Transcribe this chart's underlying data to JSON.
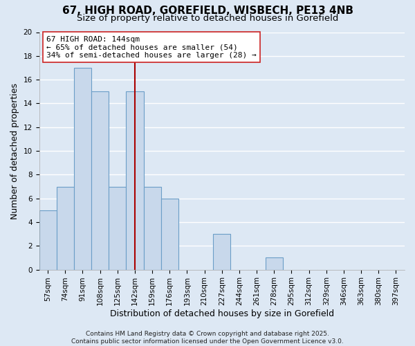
{
  "title": "67, HIGH ROAD, GOREFIELD, WISBECH, PE13 4NB",
  "subtitle": "Size of property relative to detached houses in Gorefield",
  "xlabel": "Distribution of detached houses by size in Gorefield",
  "ylabel": "Number of detached properties",
  "bin_labels": [
    "57sqm",
    "74sqm",
    "91sqm",
    "108sqm",
    "125sqm",
    "142sqm",
    "159sqm",
    "176sqm",
    "193sqm",
    "210sqm",
    "227sqm",
    "244sqm",
    "261sqm",
    "278sqm",
    "295sqm",
    "312sqm",
    "329sqm",
    "346sqm",
    "363sqm",
    "380sqm",
    "397sqm"
  ],
  "bar_values": [
    5,
    7,
    17,
    15,
    7,
    15,
    7,
    6,
    0,
    0,
    3,
    0,
    0,
    1,
    0,
    0,
    0,
    0,
    0,
    0,
    0
  ],
  "bar_color": "#c8d8eb",
  "bar_edge_color": "#6b9ec7",
  "background_color": "#dde8f4",
  "grid_color": "#ffffff",
  "vline_x_index": 5,
  "vline_color": "#aa0000",
  "annotation_line1": "67 HIGH ROAD: 144sqm",
  "annotation_line2": "← 65% of detached houses are smaller (54)",
  "annotation_line3": "34% of semi-detached houses are larger (28) →",
  "ylim": [
    0,
    20
  ],
  "yticks": [
    0,
    2,
    4,
    6,
    8,
    10,
    12,
    14,
    16,
    18,
    20
  ],
  "footer": "Contains HM Land Registry data © Crown copyright and database right 2025.\nContains public sector information licensed under the Open Government Licence v3.0.",
  "title_fontsize": 11,
  "subtitle_fontsize": 9.5,
  "xlabel_fontsize": 9,
  "ylabel_fontsize": 9,
  "tick_fontsize": 7.5,
  "annotation_fontsize": 8,
  "footer_fontsize": 6.5
}
